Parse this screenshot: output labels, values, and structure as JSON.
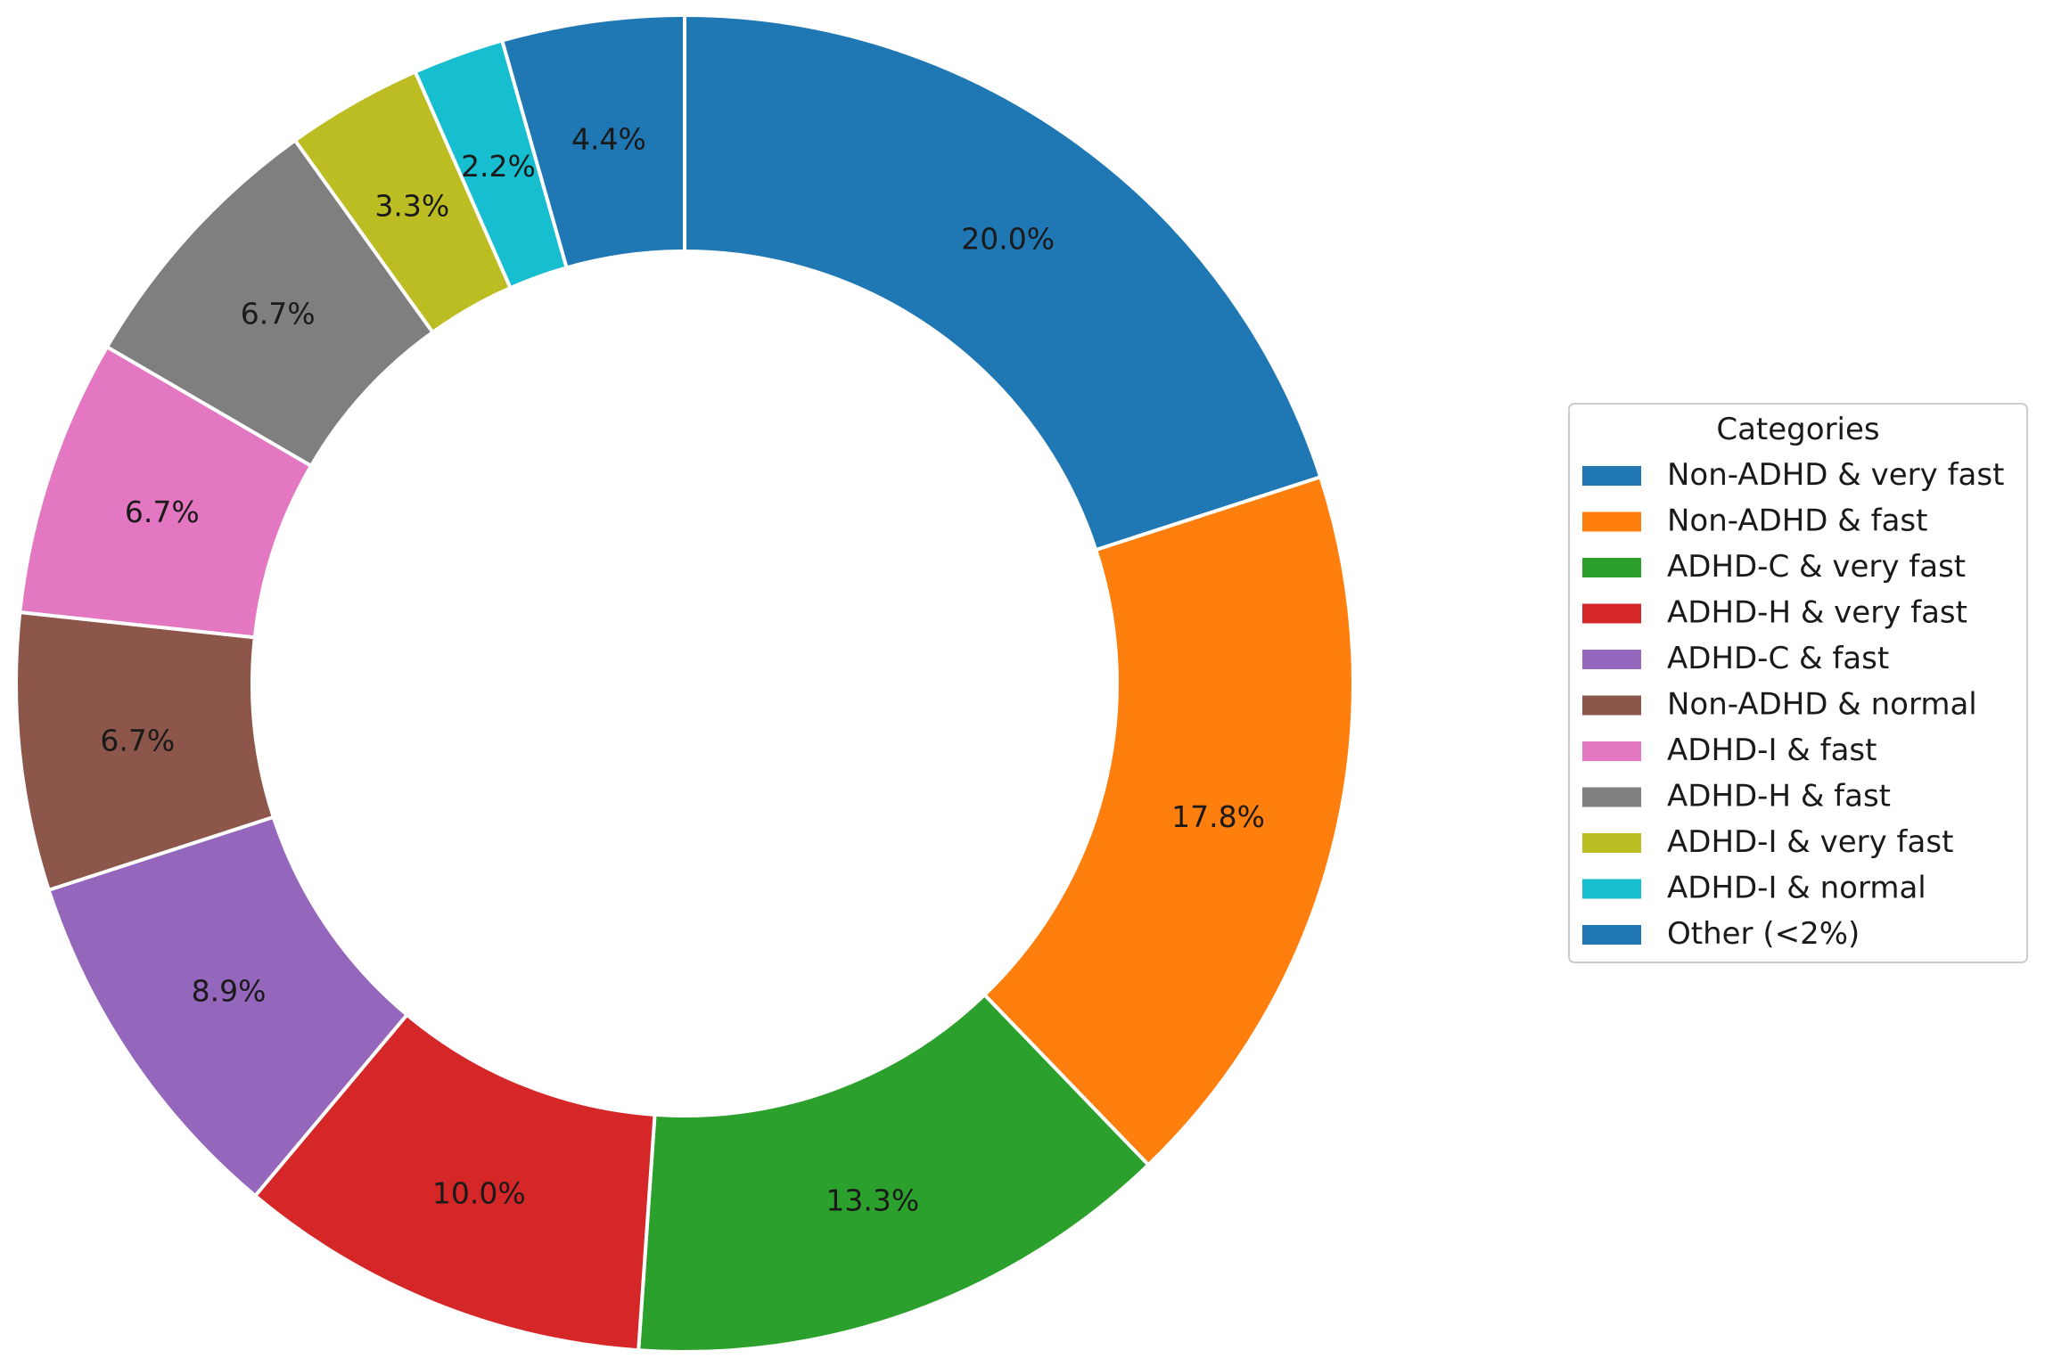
{
  "chart_data": {
    "type": "pie",
    "variant": "donut",
    "title": "",
    "labels": [
      "Non-ADHD & very fast",
      "Non-ADHD & fast",
      "ADHD-C & very fast",
      "ADHD-H & very fast",
      "ADHD-C & fast",
      "Non-ADHD & normal",
      "ADHD-I & fast",
      "ADHD-H & fast",
      "ADHD-I & very fast",
      "ADHD-I & normal",
      "Other (<2%)"
    ],
    "values": [
      20.0,
      17.8,
      13.3,
      10.0,
      8.9,
      6.7,
      6.7,
      6.7,
      3.3,
      2.2,
      4.4
    ],
    "value_labels": [
      "20.0%",
      "17.8%",
      "13.3%",
      "10.0%",
      "8.9%",
      "6.7%",
      "6.7%",
      "6.7%",
      "3.3%",
      "2.2%",
      "4.4%"
    ],
    "colors": [
      "#1f77b4",
      "#ff7f0e",
      "#2ca02c",
      "#d62728",
      "#9467bd",
      "#8c564b",
      "#e377c2",
      "#7f7f7f",
      "#bcbd22",
      "#17becf",
      "#1f77b4"
    ],
    "start_angle": "12 o'clock",
    "direction": "clockwise",
    "legend": {
      "title": "Categories",
      "position": "right"
    }
  }
}
